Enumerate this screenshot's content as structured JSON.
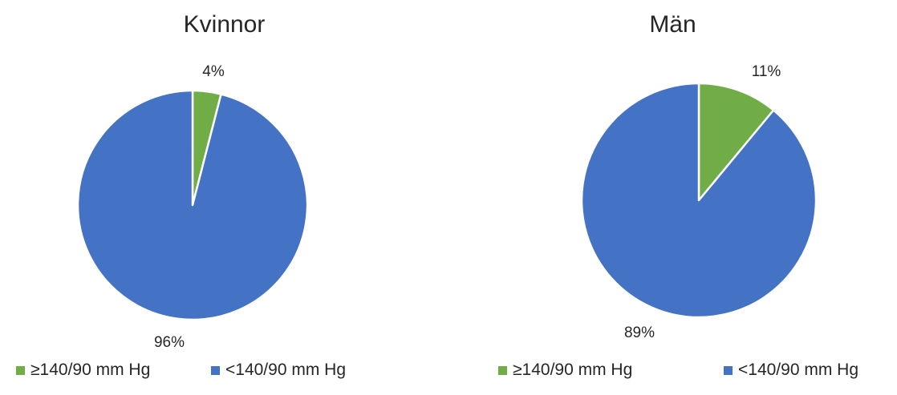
{
  "chart_data": [
    {
      "type": "pie",
      "title": "Kvinnor",
      "categories": [
        "≥140/90 mm Hg",
        "<140/90 mm Hg"
      ],
      "values": [
        4,
        96
      ],
      "labels": [
        "4%",
        "96%"
      ],
      "colors": [
        "#70AD47",
        "#4472C4"
      ],
      "legend": "bottom"
    },
    {
      "type": "pie",
      "title": "Män",
      "categories": [
        "≥140/90 mm Hg",
        "<140/90 mm Hg"
      ],
      "values": [
        11,
        89
      ],
      "labels": [
        "11%",
        "89%"
      ],
      "colors": [
        "#70AD47",
        "#4472C4"
      ],
      "legend": "bottom"
    }
  ]
}
